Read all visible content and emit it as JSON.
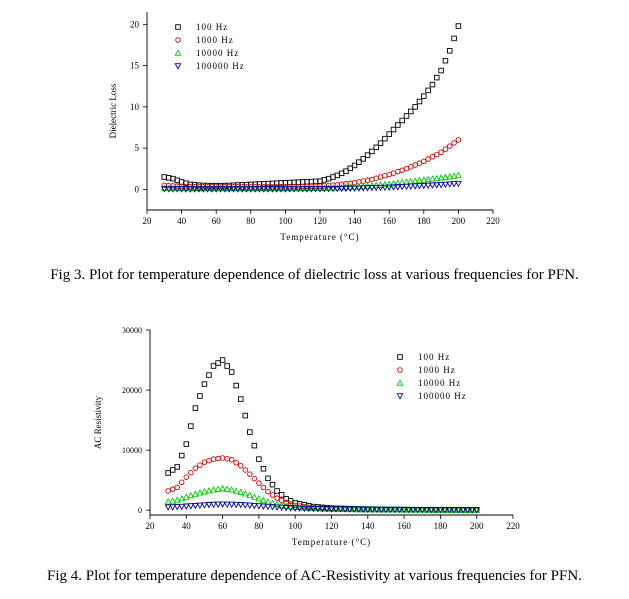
{
  "figures": [
    {
      "caption": "Fig 3. Plot for temperature dependence of dielectric loss at various frequencies for PFN.",
      "chart_data": {
        "type": "scatter",
        "title": "",
        "xlabel": "Temperature (°C)",
        "ylabel": "Dielectric Loss",
        "xlim": [
          20,
          220
        ],
        "ylim": [
          -2.5,
          21.5
        ],
        "xticks": [
          20,
          40,
          60,
          80,
          100,
          120,
          140,
          160,
          180,
          200,
          220
        ],
        "yticks": [
          0,
          5,
          10,
          15,
          20
        ],
        "legend_position": "top-left",
        "series": [
          {
            "name": "100 Hz",
            "color": "#000000",
            "marker": "square",
            "x": [
              30,
              35,
              40,
              45,
              50,
              55,
              60,
              65,
              70,
              75,
              80,
              85,
              90,
              95,
              100,
              105,
              110,
              115,
              120,
              125,
              130,
              135,
              140,
              145,
              150,
              155,
              160,
              165,
              170,
              175,
              180,
              185,
              190,
              195,
              200
            ],
            "y": [
              1.5,
              1.3,
              0.9,
              0.6,
              0.5,
              0.45,
              0.45,
              0.45,
              0.5,
              0.55,
              0.6,
              0.65,
              0.7,
              0.75,
              0.8,
              0.85,
              0.9,
              0.95,
              1.0,
              1.3,
              1.7,
              2.2,
              2.9,
              3.7,
              4.6,
              5.6,
              6.7,
              7.8,
              8.9,
              10.0,
              11.3,
              12.7,
              14.4,
              16.8,
              19.8
            ]
          },
          {
            "name": "1000 Hz",
            "color": "#cc0000",
            "marker": "circle",
            "x": [
              30,
              40,
              50,
              60,
              70,
              80,
              90,
              100,
              110,
              120,
              130,
              140,
              150,
              160,
              170,
              180,
              190,
              200
            ],
            "y": [
              0.5,
              0.35,
              0.3,
              0.3,
              0.3,
              0.3,
              0.3,
              0.32,
              0.35,
              0.4,
              0.55,
              0.8,
              1.2,
              1.8,
              2.5,
              3.4,
              4.5,
              6.0
            ]
          },
          {
            "name": "10000 Hz",
            "color": "#00cc00",
            "marker": "triangle-up",
            "x": [
              30,
              40,
              50,
              60,
              70,
              80,
              90,
              100,
              110,
              120,
              130,
              140,
              150,
              160,
              170,
              180,
              190,
              200
            ],
            "y": [
              0.15,
              0.12,
              0.1,
              0.1,
              0.1,
              0.1,
              0.1,
              0.1,
              0.12,
              0.15,
              0.2,
              0.3,
              0.45,
              0.65,
              0.9,
              1.15,
              1.4,
              1.7
            ]
          },
          {
            "name": "100000 Hz",
            "color": "#000099",
            "marker": "triangle-down",
            "x": [
              30,
              40,
              50,
              60,
              70,
              80,
              90,
              100,
              110,
              120,
              130,
              140,
              150,
              160,
              170,
              180,
              190,
              200
            ],
            "y": [
              0.05,
              0.04,
              0.04,
              0.04,
              0.04,
              0.04,
              0.04,
              0.04,
              0.05,
              0.06,
              0.08,
              0.12,
              0.18,
              0.25,
              0.35,
              0.45,
              0.55,
              0.7
            ]
          }
        ]
      }
    },
    {
      "caption": "Fig 4. Plot for temperature dependence of AC-Resistivity at various frequencies for PFN.",
      "chart_data": {
        "type": "scatter",
        "title": "",
        "xlabel": "Temperature (°C)",
        "ylabel": "AC Resistivity",
        "xlim": [
          20,
          220
        ],
        "ylim": [
          -800,
          30000
        ],
        "xticks": [
          20,
          40,
          60,
          80,
          100,
          120,
          140,
          160,
          180,
          200,
          220
        ],
        "yticks": [
          0,
          10000,
          20000,
          30000
        ],
        "legend_position": "top-right",
        "series": [
          {
            "name": "100 Hz",
            "color": "#000000",
            "marker": "square",
            "x": [
              30,
              35,
              40,
              45,
              50,
              55,
              60,
              65,
              70,
              75,
              80,
              85,
              90,
              95,
              100,
              110,
              120,
              130,
              140,
              150,
              160,
              170,
              180,
              190,
              200
            ],
            "y": [
              6200,
              7200,
              11000,
              17000,
              21000,
              24000,
              25000,
              23000,
              18500,
              13000,
              8500,
              5300,
              3200,
              1900,
              1200,
              600,
              350,
              250,
              180,
              120,
              90,
              70,
              60,
              50,
              50
            ]
          },
          {
            "name": "1000 Hz",
            "color": "#cc0000",
            "marker": "circle",
            "x": [
              30,
              35,
              40,
              45,
              50,
              55,
              60,
              65,
              70,
              75,
              80,
              85,
              90,
              95,
              100,
              110,
              120,
              130,
              140,
              150,
              160,
              170,
              180,
              190,
              200
            ],
            "y": [
              3200,
              3800,
              5500,
              7000,
              8000,
              8500,
              8700,
              8400,
              7400,
              6000,
              4500,
              3100,
              2000,
              1300,
              800,
              400,
              250,
              180,
              130,
              100,
              80,
              60,
              50,
              40,
              40
            ]
          },
          {
            "name": "10000 Hz",
            "color": "#00cc00",
            "marker": "triangle-up",
            "x": [
              30,
              35,
              40,
              45,
              50,
              55,
              60,
              65,
              70,
              75,
              80,
              85,
              90,
              95,
              100,
              110,
              120,
              130,
              140,
              150,
              160,
              170,
              180,
              190,
              200
            ],
            "y": [
              1400,
              1700,
              2200,
              2700,
              3100,
              3400,
              3600,
              3400,
              3000,
              2500,
              1900,
              1400,
              1000,
              700,
              500,
              300,
              200,
              150,
              100,
              80,
              60,
              50,
              40,
              30,
              30
            ]
          },
          {
            "name": "100000 Hz",
            "color": "#000099",
            "marker": "triangle-down",
            "x": [
              30,
              35,
              40,
              45,
              50,
              55,
              60,
              65,
              70,
              75,
              80,
              85,
              90,
              95,
              100,
              110,
              120,
              130,
              140,
              150,
              160,
              170,
              180,
              190,
              200
            ],
            "y": [
              500,
              550,
              650,
              750,
              850,
              950,
              1000,
              950,
              900,
              800,
              700,
              600,
              500,
              400,
              320,
              250,
              200,
              170,
              140,
              110,
              90,
              70,
              60,
              50,
              40
            ]
          }
        ]
      }
    }
  ]
}
